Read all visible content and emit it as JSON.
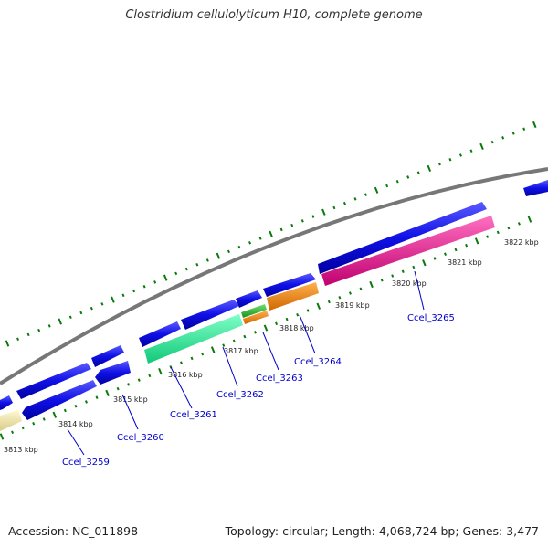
{
  "title": "Clostridium cellulolyticum H10, complete genome",
  "footer": {
    "accession": "Accession: NC_011898",
    "topology": "Topology: circular; Length: 4,068,724 bp; Genes: 3,477"
  },
  "colors": {
    "backbone": "#777777",
    "ticks": "#0a7a0a",
    "gene_blue": "#1010e6",
    "gene_khaki": "#f0e6a8",
    "gene_mint": "#2ef0a0",
    "gene_green": "#33b833",
    "gene_orange": "#f58a0a",
    "gene_pink": "#f01890",
    "label_blue": "#0000cc"
  },
  "tick_labels": [
    "3813 kbp",
    "3814 kbp",
    "3815 kbp",
    "3816 kbp",
    "3817 kbp",
    "3818 kbp",
    "3819 kbp",
    "3820 kbp",
    "3821 kbp",
    "3822 kbp"
  ],
  "gene_labels": [
    "Ccel_3259",
    "Ccel_3260",
    "Ccel_3261",
    "Ccel_3262",
    "Ccel_3263",
    "Ccel_3264",
    "Ccel_3265"
  ]
}
